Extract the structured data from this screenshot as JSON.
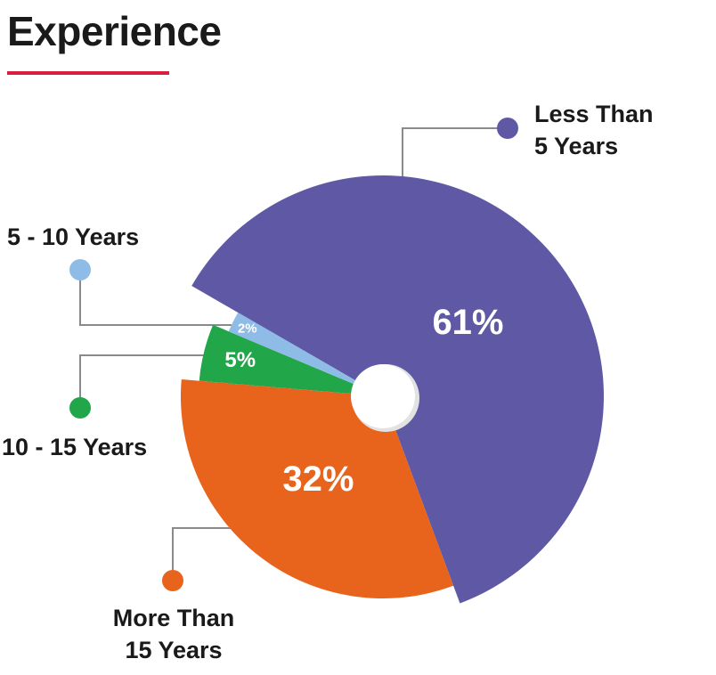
{
  "title": "Experience",
  "colors": {
    "accent_underline": "#d81f3f",
    "leader_line": "#8a8a8a"
  },
  "chart_data": {
    "type": "pie",
    "title": "Experience",
    "slices": [
      {
        "label_line1": "Less Than",
        "label_line2": "5 Years",
        "value": 61,
        "pct_label": "61%",
        "color": "#5f59a5"
      },
      {
        "label_line1": "More Than",
        "label_line2": "15 Years",
        "value": 32,
        "pct_label": "32%",
        "color": "#e8641c"
      },
      {
        "label_line1": "10 - 15 Years",
        "label_line2": "",
        "value": 5,
        "pct_label": "5%",
        "color": "#22a64a"
      },
      {
        "label_line1": "5 - 10 Years",
        "label_line2": "",
        "value": 2,
        "pct_label": "2%",
        "color": "#8fbce6"
      }
    ]
  }
}
